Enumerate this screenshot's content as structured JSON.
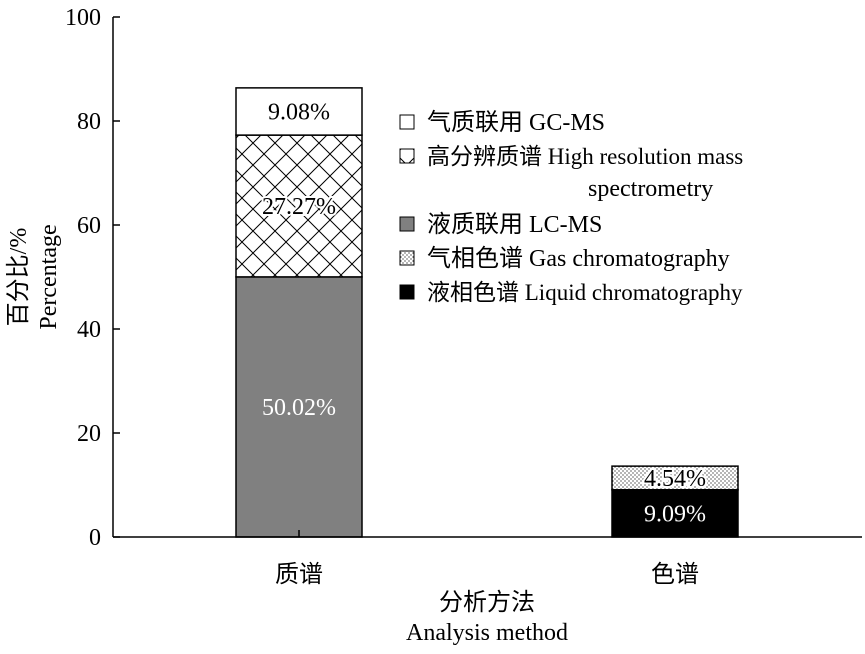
{
  "chart_data": {
    "type": "bar",
    "stacked": true,
    "categories": [
      "质谱",
      "色谱"
    ],
    "xlabel_cn": "分析方法",
    "xlabel_en": "Analysis method",
    "ylabel_cn": "百分比/%",
    "ylabel_en": "Percentage",
    "ylim": [
      0,
      100
    ],
    "yticks": [
      "0",
      "20",
      "40",
      "60",
      "80",
      "100"
    ],
    "series": [
      {
        "name_cn": "液相色谱",
        "name_en": "Liquid chromatography",
        "pattern": "solid-black",
        "values": [
          0,
          9.09
        ],
        "label": [
          "",
          "9.09%"
        ]
      },
      {
        "name_cn": "气相色谱",
        "name_en": "Gas chromatography",
        "pattern": "dots",
        "values": [
          0,
          4.54
        ],
        "label": [
          "",
          "4.54%"
        ]
      },
      {
        "name_cn": "液质联用",
        "name_en": "LC-MS",
        "pattern": "solid-gray",
        "values": [
          50.02,
          0
        ],
        "label": [
          "50.02%",
          ""
        ]
      },
      {
        "name_cn": "高分辨质谱",
        "name_en": "High resolution mass spectrometry",
        "pattern": "crosshatch",
        "values": [
          27.27,
          0
        ],
        "label": [
          "27.27%",
          ""
        ]
      },
      {
        "name_cn": "气质联用",
        "name_en": "GC-MS",
        "pattern": "white",
        "values": [
          9.08,
          0
        ],
        "label": [
          "9.08%",
          ""
        ]
      }
    ],
    "legend": {
      "position": "top-right",
      "entries": [
        {
          "series": "气质联用",
          "lines": [
            "气质联用  GC-MS"
          ]
        },
        {
          "series": "高分辨质谱",
          "lines": [
            "高分辨质谱  High resolution mass",
            "spectrometry"
          ]
        },
        {
          "series": "液质联用",
          "lines": [
            "液质联用  LC-MS"
          ]
        },
        {
          "series": "气相色谱",
          "lines": [
            "气相色谱  Gas chromatography"
          ]
        },
        {
          "series": "液相色谱",
          "lines": [
            "液相色谱  Liquid chromatography"
          ]
        }
      ]
    },
    "colors": {
      "axis": "#000000",
      "solid_gray": "#808080",
      "solid_black": "#000000",
      "white": "#ffffff",
      "label_on_dark": "#ffffff",
      "label_on_light": "#000000"
    }
  }
}
